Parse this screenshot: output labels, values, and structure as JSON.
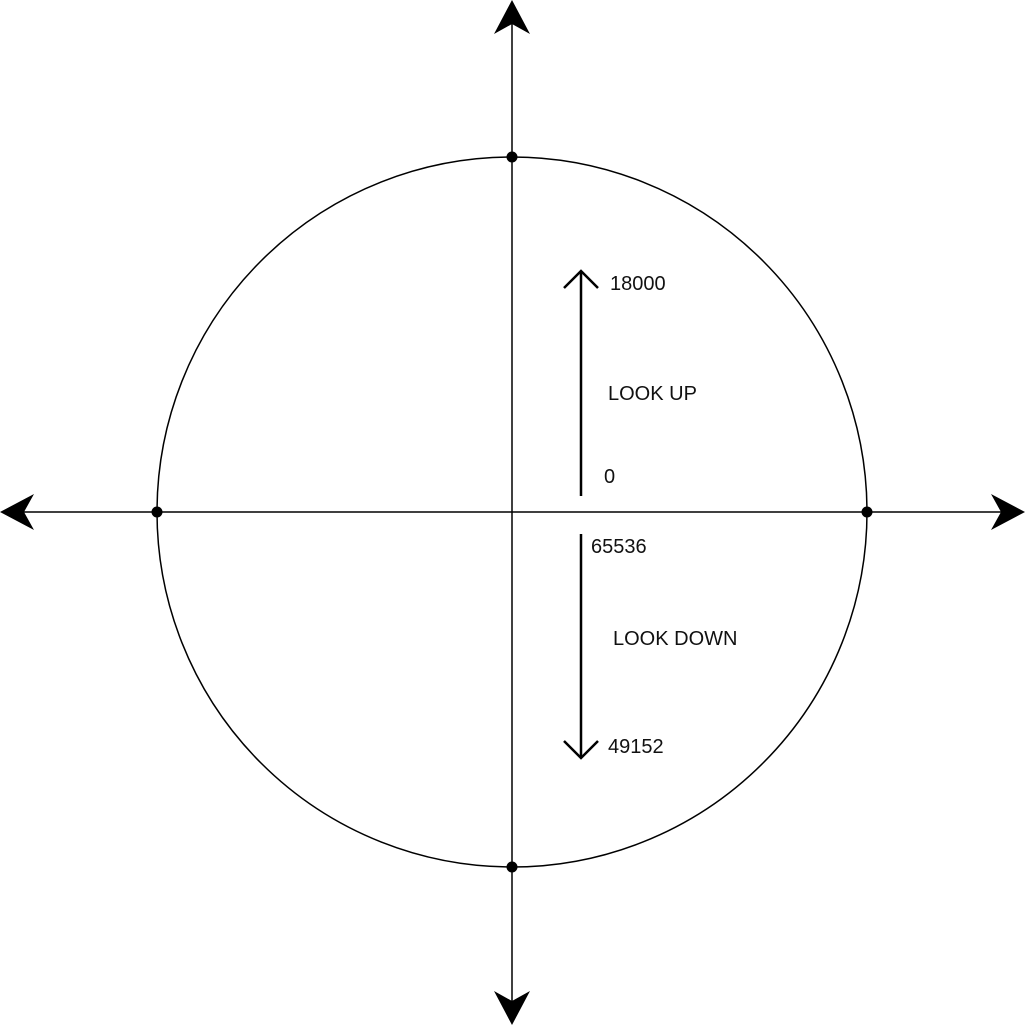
{
  "diagram": {
    "labels": {
      "up_max": "18000",
      "look_up": "LOOK UP",
      "zero": "0",
      "wrap": "65536",
      "look_down": "LOOK DOWN",
      "down_max": "49152"
    },
    "colors": {
      "stroke": "#000000",
      "text": "#111111",
      "background": "#ffffff"
    }
  }
}
